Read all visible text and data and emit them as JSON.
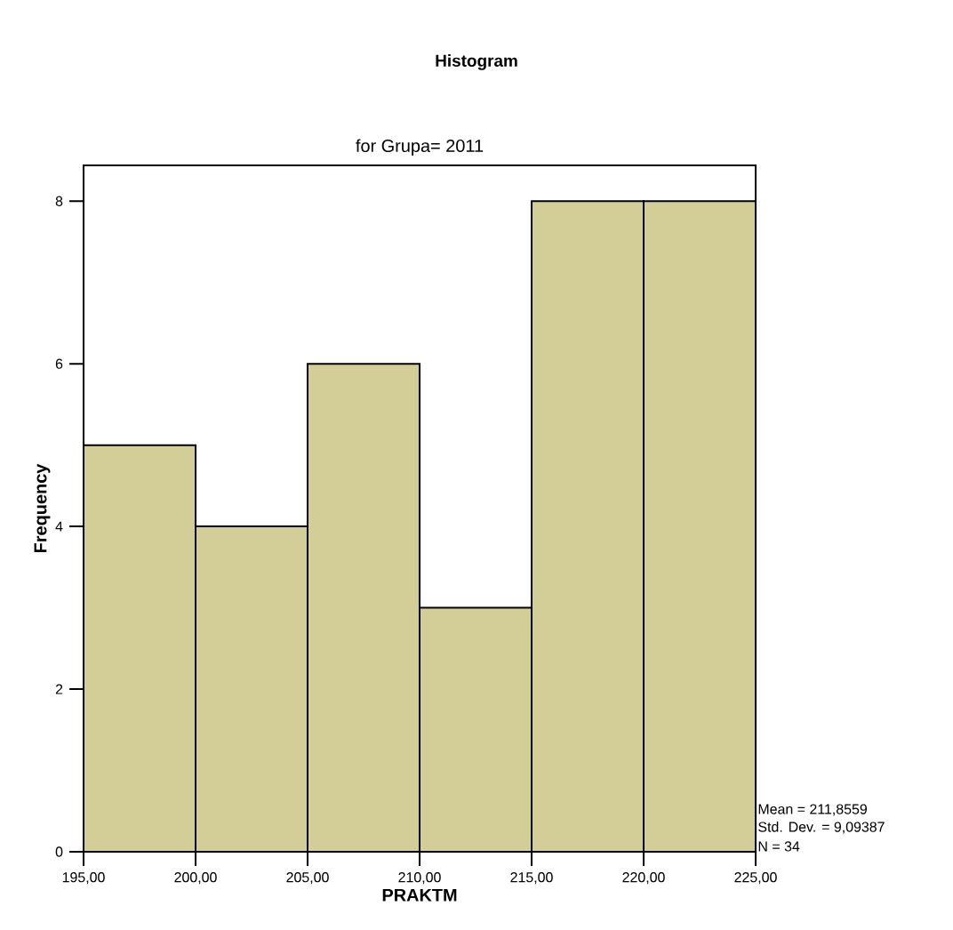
{
  "chart_data": {
    "type": "histogram",
    "title": "Histogram",
    "subtitle": "for Grupa= 2011",
    "xlabel": "PRAKTM",
    "ylabel": "Frequency",
    "bins": [
      195,
      200,
      205,
      210,
      215,
      220,
      225
    ],
    "values": [
      5,
      4,
      6,
      3,
      8,
      8
    ],
    "color": "#d3ce98",
    "xlim": [
      195,
      225
    ],
    "ylim": [
      0,
      8.44
    ],
    "xticks": [
      {
        "value": 195,
        "label": "195,00"
      },
      {
        "value": 200,
        "label": "200,00"
      },
      {
        "value": 205,
        "label": "205,00"
      },
      {
        "value": 210,
        "label": "210,00"
      },
      {
        "value": 215,
        "label": "215,00"
      },
      {
        "value": 220,
        "label": "220,00"
      },
      {
        "value": 225,
        "label": "225,00"
      }
    ],
    "yticks": [
      0,
      2,
      4,
      6,
      8
    ],
    "annotations": [
      "Mean = 211,8559",
      "Std. Dev. = 9,09387",
      "N = 34"
    ]
  }
}
